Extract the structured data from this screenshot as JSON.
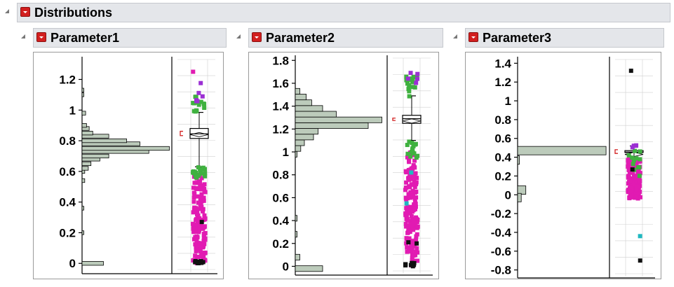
{
  "outline": {
    "title": "Distributions"
  },
  "panels": [
    {
      "title": "Parameter1",
      "ticks": [
        "1.2",
        "1",
        "0.8",
        "0.6",
        "0.4",
        "0.2",
        "0"
      ],
      "chart": {
        "type": "histogram",
        "ylim": [
          -0.04,
          1.33
        ],
        "bin_width": 0.025,
        "counts": [
          [
            0.0,
            0.24
          ],
          [
            0.2,
            0.02
          ],
          [
            0.36,
            0.02
          ],
          [
            0.54,
            0.03
          ],
          [
            0.6,
            0.03
          ],
          [
            0.62,
            0.07
          ],
          [
            0.65,
            0.1
          ],
          [
            0.68,
            0.2
          ],
          [
            0.7,
            0.3
          ],
          [
            0.73,
            0.75
          ],
          [
            0.75,
            0.98
          ],
          [
            0.78,
            0.65
          ],
          [
            0.8,
            0.5
          ],
          [
            0.83,
            0.3
          ],
          [
            0.85,
            0.12
          ],
          [
            0.88,
            0.08
          ],
          [
            0.9,
            0.05
          ],
          [
            0.98,
            0.04
          ],
          [
            1.1,
            0.02
          ],
          [
            1.13,
            0.02
          ]
        ],
        "box": {
          "q1": 0.815,
          "median": 0.845,
          "q3": 0.88,
          "whisker_low": 0.63,
          "whisker_high": 0.985,
          "mean": 0.84
        }
      }
    },
    {
      "title": "Parameter2",
      "ticks": [
        "1.8",
        "1.6",
        "1.4",
        "1.2",
        "1",
        "0.8",
        "0.6",
        "0.4",
        "0.2",
        "0"
      ],
      "chart": {
        "type": "histogram",
        "ylim": [
          -0.04,
          1.82
        ],
        "bin_width": 0.05,
        "counts": [
          [
            -0.02,
            0.3
          ],
          [
            0.08,
            0.05
          ],
          [
            0.28,
            0.02
          ],
          [
            0.42,
            0.02
          ],
          [
            0.98,
            0.02
          ],
          [
            1.03,
            0.06
          ],
          [
            1.08,
            0.1
          ],
          [
            1.13,
            0.2
          ],
          [
            1.18,
            0.25
          ],
          [
            1.23,
            0.8
          ],
          [
            1.28,
            0.95
          ],
          [
            1.33,
            0.45
          ],
          [
            1.38,
            0.3
          ],
          [
            1.43,
            0.18
          ],
          [
            1.48,
            0.12
          ],
          [
            1.53,
            0.05
          ]
        ],
        "box": {
          "q1": 1.25,
          "median": 1.29,
          "q3": 1.32,
          "whisker_low": 1.1,
          "whisker_high": 1.49,
          "mean": 1.27
        }
      }
    },
    {
      "title": "Parameter3",
      "ticks": [
        "1.4",
        "1.2",
        "1",
        "0.8",
        "0.6",
        "0.4",
        "0.2",
        "0",
        "-0.2",
        "-0.4",
        "-0.6",
        "-0.8"
      ],
      "chart": {
        "type": "histogram",
        "ylim": [
          -0.84,
          1.44
        ],
        "bin_width": 0.09,
        "counts": [
          [
            0.47,
            0.97
          ],
          [
            0.37,
            0.02
          ],
          [
            0.05,
            0.09
          ],
          [
            -0.03,
            0.04
          ]
        ],
        "box": {
          "q1": 0.45,
          "median": 0.455,
          "q3": 0.47,
          "whisker_low": 0.39,
          "whisker_high": 0.52,
          "mean": 0.43
        }
      }
    }
  ],
  "colors": {
    "bar_fill": "#bccbbb",
    "bar_stroke": "#000000",
    "pink": "#e11bb2",
    "green": "#3fb13f",
    "purple": "#9b2fd3",
    "cyan": "#1fb8c0",
    "black": "#111111",
    "mean_bracket": "#d21f1f",
    "grid": "#d0d0d0"
  }
}
